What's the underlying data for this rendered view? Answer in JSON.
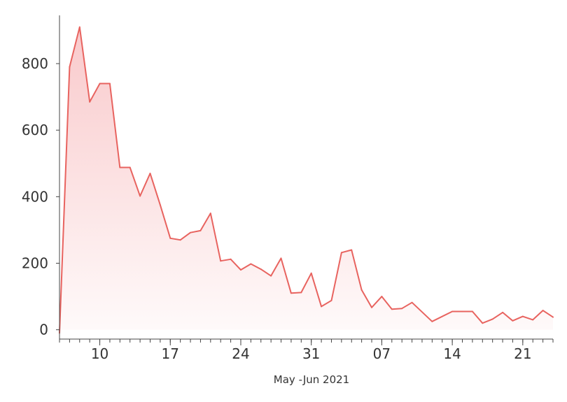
{
  "chart_data": {
    "type": "area",
    "title": "",
    "xlabel": "May -Jun 2021",
    "ylabel": "",
    "ylim": [
      -28,
      945
    ],
    "xlim": [
      "2021-05-06",
      "2021-06-24"
    ],
    "grid": false,
    "legend": "none",
    "colors": {
      "line": "#e8635f",
      "fill": "#f8c0c2",
      "axis": "#444444"
    },
    "x_ticks": [
      {
        "date": "2021-05-10",
        "label": "10"
      },
      {
        "date": "2021-05-17",
        "label": "17"
      },
      {
        "date": "2021-05-24",
        "label": "24"
      },
      {
        "date": "2021-05-31",
        "label": "31"
      },
      {
        "date": "2021-06-07",
        "label": "07"
      },
      {
        "date": "2021-06-14",
        "label": "14"
      },
      {
        "date": "2021-06-21",
        "label": "21"
      }
    ],
    "y_ticks": [
      0,
      200,
      400,
      600,
      800
    ],
    "series": [
      {
        "x": [
          "2021-05-06",
          "2021-05-07",
          "2021-05-08",
          "2021-05-09",
          "2021-05-10",
          "2021-05-11",
          "2021-05-12",
          "2021-05-13",
          "2021-05-14",
          "2021-05-15",
          "2021-05-16",
          "2021-05-17",
          "2021-05-18",
          "2021-05-19",
          "2021-05-20",
          "2021-05-21",
          "2021-05-22",
          "2021-05-23",
          "2021-05-24",
          "2021-05-25",
          "2021-05-26",
          "2021-05-27",
          "2021-05-28",
          "2021-05-29",
          "2021-05-30",
          "2021-05-31",
          "2021-06-01",
          "2021-06-02",
          "2021-06-03",
          "2021-06-04",
          "2021-06-05",
          "2021-06-06",
          "2021-06-07",
          "2021-06-08",
          "2021-06-09",
          "2021-06-10",
          "2021-06-12",
          "2021-06-14",
          "2021-06-15",
          "2021-06-16",
          "2021-06-17",
          "2021-06-18",
          "2021-06-19",
          "2021-06-20",
          "2021-06-21",
          "2021-06-22",
          "2021-06-23",
          "2021-06-24"
        ],
        "values": [
          -10,
          790,
          910,
          685,
          740,
          740,
          488,
          488,
          402,
          470,
          375,
          275,
          270,
          292,
          298,
          350,
          207,
          212,
          180,
          198,
          182,
          162,
          215,
          110,
          112,
          170,
          70,
          88,
          232,
          240,
          120,
          67,
          100,
          62,
          64,
          82,
          25,
          55,
          55,
          55,
          20,
          32,
          52,
          27,
          40,
          30,
          58,
          38
        ]
      }
    ]
  }
}
